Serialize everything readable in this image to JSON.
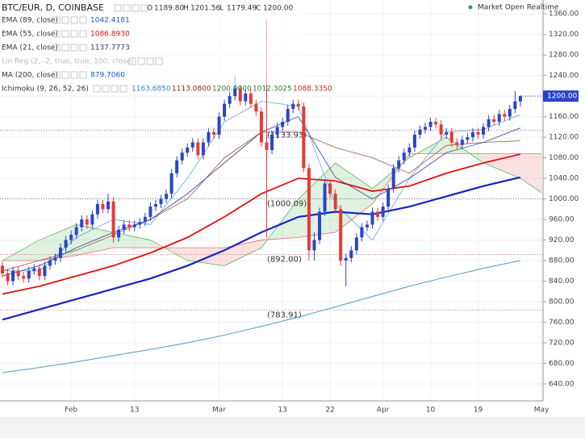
{
  "chart_data": {
    "type": "candlestick",
    "symbol": "BTC/EUR, D, COINBASE",
    "ohlc_legend": [
      {
        "key": "O",
        "value": "1189.80"
      },
      {
        "key": "H",
        "value": "1201.56"
      },
      {
        "key": "L",
        "value": "1179.49"
      },
      {
        "key": "C",
        "value": "1200.00"
      }
    ],
    "status": "Market Open Realtime",
    "last_price_label": "1200.00",
    "up_color": "#2a44c8",
    "down_color": "#e53935",
    "categories": [
      null,
      null,
      null,
      null,
      null,
      null,
      null,
      null,
      null,
      null,
      null,
      null,
      null,
      "Feb",
      null,
      null,
      null,
      null,
      null,
      null,
      null,
      null,
      null,
      null,
      null,
      "13",
      null,
      null,
      null,
      null,
      null,
      null,
      null,
      null,
      null,
      null,
      null,
      null,
      null,
      null,
      null,
      "Mar",
      null,
      null,
      null,
      null,
      null,
      null,
      null,
      null,
      null,
      null,
      null,
      "13",
      null,
      null,
      null,
      null,
      null,
      null,
      null,
      null,
      "22",
      null,
      null,
      null,
      null,
      null,
      null,
      null,
      null,
      null,
      "Apr",
      null,
      null,
      null,
      null,
      null,
      null,
      null,
      null,
      "10",
      null,
      null,
      null,
      null,
      null,
      null,
      null,
      null,
      "19",
      null,
      null,
      null,
      null,
      null,
      null,
      null,
      null,
      null,
      null,
      null,
      "May"
    ],
    "open": [
      870,
      855,
      840,
      860,
      850,
      845,
      860,
      865,
      850,
      870,
      880,
      885,
      905,
      920,
      930,
      945,
      960,
      950,
      970,
      990,
      980,
      995,
      925,
      940,
      950,
      945,
      950,
      955,
      965,
      985,
      990,
      1000,
      1010,
      1050,
      1075,
      1090,
      1100,
      1110,
      1085,
      1110,
      1130,
      1125,
      1160,
      1185,
      1200,
      1215,
      1190,
      1205,
      1185,
      1170,
      1110,
      1095,
      1125,
      1140,
      1150,
      1175,
      1185,
      1180,
      1060,
      900,
      920,
      975,
      1030,
      1010,
      980,
      880,
      885,
      900,
      925,
      945,
      950,
      975,
      965,
      985,
      1020,
      1060,
      1075,
      1090,
      1100,
      1125,
      1135,
      1140,
      1150,
      1145,
      1125,
      1130,
      1110,
      1105,
      1115,
      1120,
      1130,
      1125,
      1140,
      1155,
      1150,
      1165,
      1160,
      1175,
      1189.8,
      null,
      null,
      null,
      null
    ],
    "high": [
      878,
      863,
      868,
      868,
      858,
      868,
      873,
      873,
      878,
      888,
      893,
      913,
      928,
      938,
      953,
      968,
      968,
      978,
      998,
      998,
      1010,
      1003,
      948,
      958,
      958,
      958,
      963,
      973,
      993,
      998,
      1008,
      1018,
      1058,
      1083,
      1098,
      1108,
      1118,
      1118,
      1118,
      1138,
      1138,
      1168,
      1193,
      1208,
      1240,
      1223,
      1213,
      1213,
      1193,
      1178,
      1347,
      1133,
      1148,
      1158,
      1183,
      1193,
      1193,
      1188,
      1068,
      935,
      983,
      1038,
      1038,
      1018,
      988,
      893,
      908,
      933,
      953,
      958,
      983,
      983,
      993,
      1028,
      1068,
      1083,
      1098,
      1108,
      1133,
      1143,
      1148,
      1158,
      1158,
      1153,
      1138,
      1138,
      1118,
      1123,
      1128,
      1138,
      1138,
      1148,
      1163,
      1163,
      1173,
      1173,
      1183,
      1210,
      1201.56,
      null,
      null,
      null,
      null
    ],
    "low": [
      847,
      832,
      832,
      842,
      837,
      837,
      852,
      842,
      842,
      862,
      872,
      877,
      897,
      912,
      922,
      937,
      942,
      942,
      962,
      972,
      972,
      915,
      917,
      932,
      937,
      937,
      942,
      947,
      957,
      977,
      982,
      992,
      1002,
      1042,
      1067,
      1082,
      1092,
      1077,
      1077,
      1102,
      1117,
      1117,
      1152,
      1177,
      1192,
      1182,
      1182,
      1177,
      1162,
      1102,
      924,
      1087,
      1117,
      1132,
      1142,
      1167,
      1172,
      1052,
      880,
      880,
      912,
      967,
      1002,
      972,
      870,
      830,
      877,
      892,
      917,
      937,
      942,
      957,
      957,
      977,
      1012,
      1052,
      1067,
      1082,
      1092,
      1117,
      1127,
      1132,
      1137,
      1117,
      1117,
      1102,
      1097,
      1097,
      1107,
      1112,
      1117,
      1117,
      1132,
      1142,
      1142,
      1152,
      1152,
      1167,
      1179.49,
      null,
      null,
      null,
      null
    ],
    "close": [
      855,
      840,
      860,
      850,
      845,
      860,
      865,
      850,
      870,
      880,
      885,
      905,
      920,
      930,
      945,
      960,
      950,
      970,
      990,
      980,
      995,
      925,
      940,
      950,
      945,
      950,
      955,
      965,
      985,
      990,
      1000,
      1010,
      1050,
      1075,
      1090,
      1100,
      1110,
      1085,
      1110,
      1130,
      1125,
      1160,
      1185,
      1200,
      1215,
      1190,
      1205,
      1185,
      1170,
      1110,
      1095,
      1125,
      1140,
      1150,
      1175,
      1185,
      1180,
      1060,
      900,
      920,
      975,
      1030,
      1010,
      980,
      880,
      885,
      900,
      925,
      945,
      950,
      975,
      965,
      985,
      1020,
      1060,
      1075,
      1090,
      1100,
      1125,
      1135,
      1140,
      1150,
      1145,
      1125,
      1130,
      1110,
      1105,
      1115,
      1120,
      1130,
      1125,
      1140,
      1155,
      1150,
      1165,
      1160,
      1175,
      1190,
      1200,
      null,
      null,
      null,
      null
    ],
    "ylim": [
      607,
      1387
    ],
    "yticks": [
      {
        "value": 640,
        "label": "640.00"
      },
      {
        "value": 680,
        "label": "680.00"
      },
      {
        "value": 720,
        "label": "720.00"
      },
      {
        "value": 760,
        "label": "760.00"
      },
      {
        "value": 800,
        "label": "800.00"
      },
      {
        "value": 840,
        "label": "840.00"
      },
      {
        "value": 880,
        "label": "880.00"
      },
      {
        "value": 920,
        "label": "920.00"
      },
      {
        "value": 960,
        "label": "960.00"
      },
      {
        "value": 1000,
        "label": "1000.00"
      },
      {
        "value": 1040,
        "label": "1040.00"
      },
      {
        "value": 1080,
        "label": "1080.00"
      },
      {
        "value": 1120,
        "label": "1120.00"
      },
      {
        "value": 1160,
        "label": "1160.00"
      },
      {
        "value": 1200,
        "label": "1200.00"
      },
      {
        "value": 1240,
        "label": "1240.00"
      },
      {
        "value": 1280,
        "label": "1280.00"
      },
      {
        "value": 1320,
        "label": "1320.00"
      },
      {
        "value": 1360,
        "label": "1360.00"
      }
    ],
    "grid": true,
    "indicators": [
      {
        "name": "EMA (89, close)",
        "value_label": "1042.4181",
        "label_color": "#1a5bd0",
        "color": "#1424c0",
        "width": 2.2,
        "x": [
          0,
          7,
          14,
          21,
          28,
          35,
          42,
          49,
          56,
          63,
          70,
          77,
          84,
          91,
          98
        ],
        "values": [
          765,
          785,
          805,
          825,
          845,
          870,
          900,
          935,
          965,
          975,
          970,
          985,
          1005,
          1025,
          1042
        ]
      },
      {
        "name": "EMA (55, close)",
        "value_label": "1086.8930",
        "label_color": "#e01010",
        "color": "#e01010",
        "width": 1.8,
        "x": [
          0,
          7,
          14,
          21,
          28,
          35,
          42,
          49,
          56,
          63,
          70,
          77,
          84,
          91,
          98
        ],
        "values": [
          815,
          830,
          850,
          870,
          895,
          925,
          965,
          1010,
          1040,
          1035,
          1015,
          1025,
          1050,
          1070,
          1087
        ]
      },
      {
        "name": "EMA (21, close)",
        "value_label": "1137.7773",
        "label_color": "#333366",
        "color": "#4a4a9a",
        "width": 0.9,
        "x": [
          0,
          7,
          14,
          21,
          28,
          35,
          42,
          49,
          56,
          63,
          70,
          77,
          84,
          91,
          98
        ],
        "values": [
          850,
          870,
          905,
          935,
          960,
          1010,
          1070,
          1130,
          1160,
          1042,
          1000,
          1040,
          1090,
          1110,
          1138
        ]
      },
      {
        "name": "MA (200, close)",
        "value_label": "879.7060",
        "label_color": "#1a5bd0",
        "color": "#4a9bc0",
        "width": 1,
        "x": [
          0,
          7,
          14,
          21,
          28,
          35,
          42,
          49,
          56,
          63,
          70,
          77,
          84,
          91,
          98
        ],
        "values": [
          662,
          672,
          683,
          695,
          707,
          720,
          735,
          752,
          770,
          790,
          810,
          830,
          848,
          865,
          880
        ]
      }
    ],
    "lin_reg": {
      "name": "Lin Reg (2, -2, true, true, 100, close)"
    },
    "ichimoku": {
      "name": "Ichimoku (9, 26, 52, 26)",
      "labels": [
        {
          "text": "1163.6850",
          "color": "#3a86d0"
        },
        {
          "text": "1113.0800",
          "color": "#8b2a1a"
        },
        {
          "text": "1200.0000",
          "color": "#2e7d32"
        },
        {
          "text": "1012.3025",
          "color": "#2e7d32"
        },
        {
          "text": "1088.3350",
          "color": "#c62828"
        }
      ],
      "conversion": {
        "color": "#5aa8e8",
        "x": [
          0,
          7,
          14,
          21,
          28,
          35,
          42,
          49,
          56,
          63,
          70,
          77,
          84,
          91,
          98
        ],
        "values": [
          860,
          860,
          925,
          960,
          950,
          1040,
          1150,
          1190,
          1180,
          990,
          920,
          1040,
          1130,
          1135,
          1164
        ]
      },
      "base": {
        "color": "#9a5a4a",
        "x": [
          0,
          7,
          14,
          21,
          28,
          35,
          42,
          49,
          56,
          63,
          70,
          77,
          84,
          91,
          98
        ],
        "values": [
          860,
          880,
          900,
          930,
          960,
          1000,
          1080,
          1130,
          1130,
          1100,
          1080,
          1050,
          1104,
          1110,
          1113
        ]
      },
      "lead_x": [
        0,
        7,
        14,
        21,
        28,
        35,
        42,
        49,
        56,
        63,
        70,
        77,
        84,
        91,
        98,
        102
      ],
      "lead_a": {
        "color": "#5cb85c",
        "values": [
          880,
          920,
          950,
          935,
          920,
          880,
          870,
          905,
          1000,
          1070,
          1020,
          1080,
          1120,
          1070,
          1040,
          1012
        ]
      },
      "lead_b": {
        "color": "#e57373",
        "values": [
          880,
          880,
          890,
          905,
          905,
          905,
          905,
          920,
          925,
          935,
          990,
          1088,
          1088,
          1088,
          1088,
          1088
        ]
      },
      "cloud_up": "rgba(110,190,110,0.22)",
      "cloud_down": "rgba(240,140,140,0.25)"
    },
    "levels": [
      {
        "value": 1133.93,
        "label": "(1133.93)",
        "color": "#7a4aa0"
      },
      {
        "value": 1000.09,
        "label": "(1000.09)",
        "color": "#7a4aa0"
      },
      {
        "value": 892.0,
        "label": "(892.00)",
        "color": "#d84a4a"
      },
      {
        "value": 783.91,
        "label": "(783.91)",
        "color": "#d84a4a"
      }
    ]
  }
}
